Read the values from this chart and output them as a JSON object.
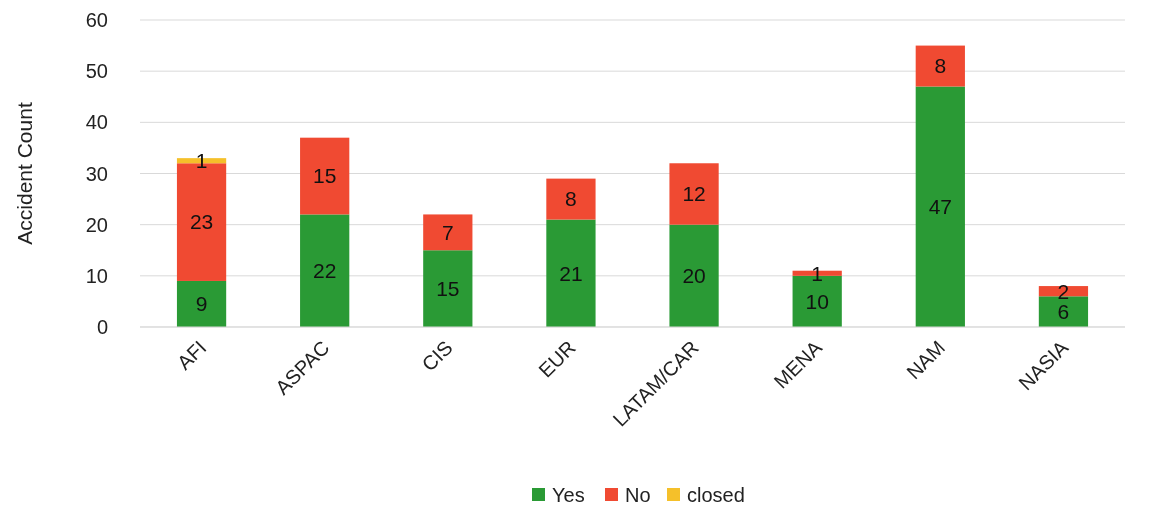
{
  "chart_data": {
    "type": "bar",
    "stacked": true,
    "ylabel": "Accident Count",
    "categories": [
      "AFI",
      "ASPAC",
      "CIS",
      "EUR",
      "LATAM/CAR",
      "MENA",
      "NAM",
      "NASIA"
    ],
    "series": [
      {
        "name": "Yes",
        "color": "#2a9a35",
        "values": [
          9,
          22,
          15,
          21,
          20,
          10,
          47,
          6
        ]
      },
      {
        "name": "No",
        "color": "#f04a32",
        "values": [
          23,
          15,
          7,
          8,
          12,
          1,
          8,
          2
        ]
      },
      {
        "name": "closed",
        "color": "#f5c02a",
        "values": [
          1,
          null,
          null,
          null,
          null,
          null,
          null,
          null
        ]
      }
    ],
    "ylim": [
      0,
      60
    ],
    "yticks": [
      0,
      10,
      20,
      30,
      40,
      50,
      60
    ],
    "grid": "y",
    "legend": "bottom",
    "data_labels": true
  }
}
